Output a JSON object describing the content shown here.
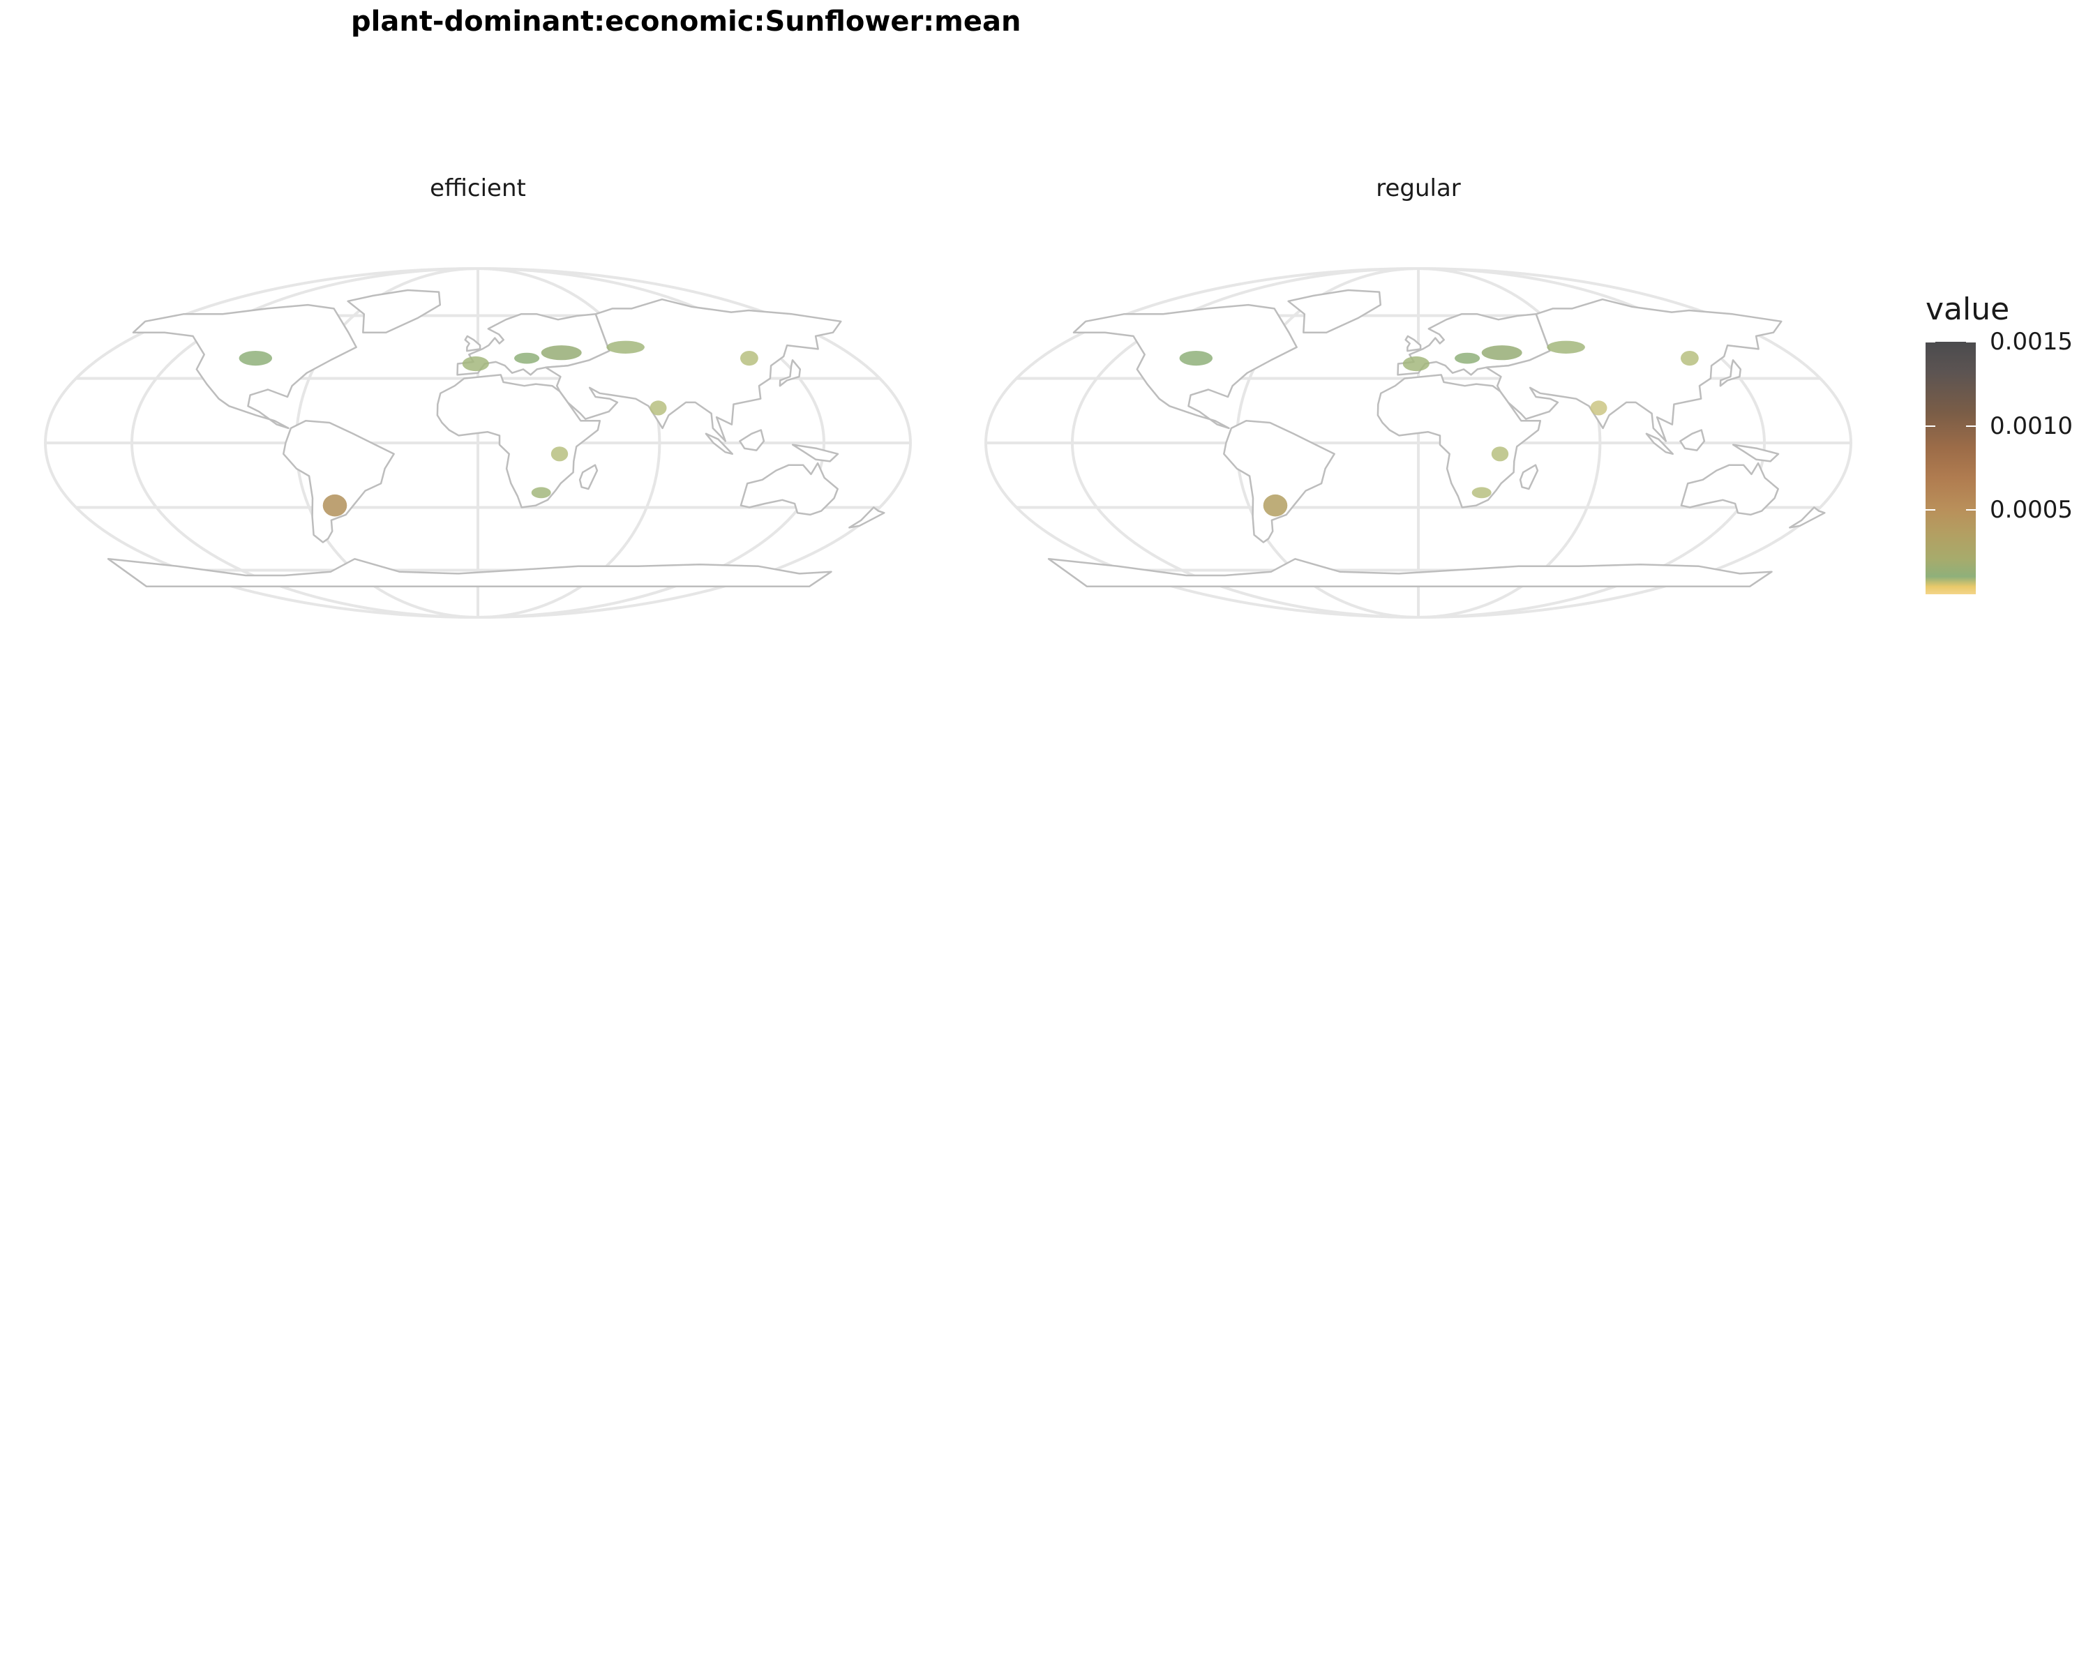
{
  "title": "plant-dominant:economic:Sunflower:mean",
  "chart_data": {
    "type": "heatmap",
    "subtype": "choropleth-map",
    "projection": "Robinson",
    "panels": [
      {
        "label": "efficient",
        "regions": [
          {
            "name": "Argentina (Pampas)",
            "value": 0.0006
          },
          {
            "name": "Ukraine / southern Russia",
            "value": 0.0003
          },
          {
            "name": "Eastern Europe (Romania, Bulgaria, Hungary)",
            "value": 0.00025
          },
          {
            "name": "Western Europe (France, Spain)",
            "value": 0.0002
          },
          {
            "name": "Kazakhstan",
            "value": 0.0002
          },
          {
            "name": "Northern Great Plains (USA)",
            "value": 0.00025
          },
          {
            "name": "Northeast China",
            "value": 0.00015
          },
          {
            "name": "India",
            "value": 0.00015
          },
          {
            "name": "Tanzania",
            "value": 0.00015
          },
          {
            "name": "South Africa",
            "value": 0.0002
          }
        ]
      },
      {
        "label": "regular",
        "regions": [
          {
            "name": "Argentina (Pampas)",
            "value": 0.0005
          },
          {
            "name": "Ukraine / southern Russia",
            "value": 0.0003
          },
          {
            "name": "Eastern Europe (Romania, Bulgaria, Hungary)",
            "value": 0.00025
          },
          {
            "name": "Western Europe (France, Spain)",
            "value": 0.0002
          },
          {
            "name": "Kazakhstan",
            "value": 0.0002
          },
          {
            "name": "Northern Great Plains (USA)",
            "value": 0.00025
          },
          {
            "name": "Northeast China",
            "value": 0.00015
          },
          {
            "name": "India",
            "value": 0.0001
          },
          {
            "name": "Tanzania",
            "value": 0.00015
          },
          {
            "name": "South Africa",
            "value": 0.00015
          }
        ]
      }
    ],
    "legend": {
      "title": "value",
      "min": 0,
      "max": 0.0015,
      "ticks": [
        {
          "value": 0.0015,
          "label": "0.0015"
        },
        {
          "value": 0.001,
          "label": "0.0010"
        },
        {
          "value": 0.0005,
          "label": "0.0005"
        }
      ],
      "colors": [
        "#f3d58a",
        "#8fb07a",
        "#b39f62",
        "#b07c50",
        "#9c6c48",
        "#5c5452",
        "#4b4b4e"
      ]
    }
  }
}
